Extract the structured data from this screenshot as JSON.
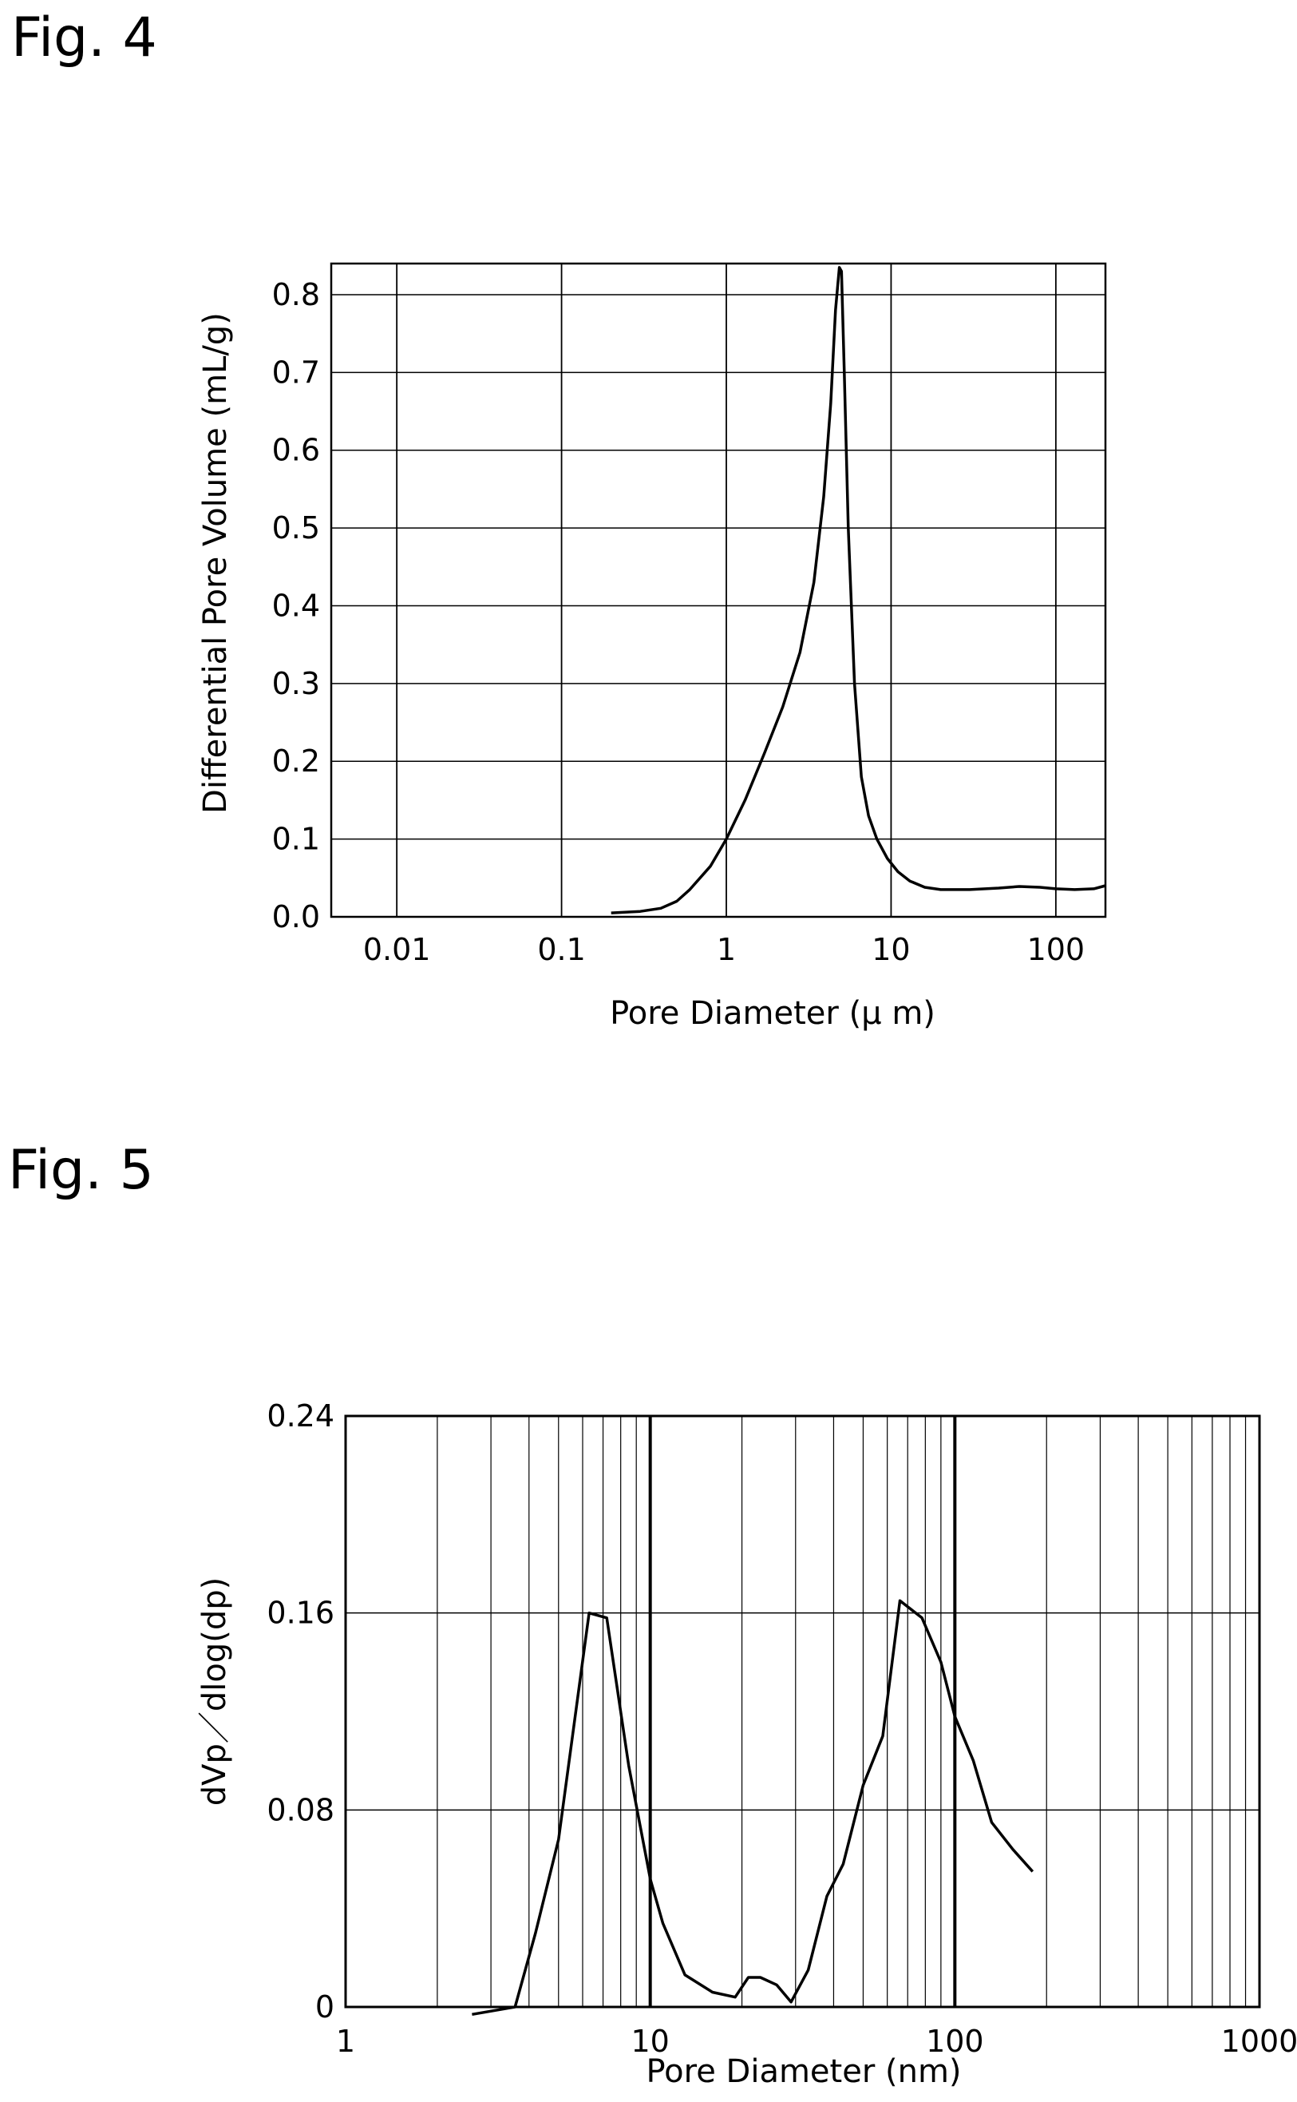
{
  "figures": {
    "fig4_label": "Fig. 4",
    "fig5_label": "Fig. 5"
  },
  "chart_data": [
    {
      "type": "line",
      "xlabel": "Pore Diameter (μ m)",
      "ylabel": "Differential Pore Volume (mL/g)",
      "x_scale": "log",
      "xlim": [
        0.004,
        200
      ],
      "ylim": [
        0,
        0.84
      ],
      "x_ticks": [
        0.01,
        0.1,
        1,
        10,
        100
      ],
      "x_tick_labels": [
        "0.01",
        "0.1",
        "1",
        "10",
        "100"
      ],
      "y_ticks": [
        0,
        0.1,
        0.2,
        0.3,
        0.4,
        0.5,
        0.6,
        0.7,
        0.8
      ],
      "y_tick_labels": [
        "0.0",
        "0.1",
        "0.2",
        "0.3",
        "0.4",
        "0.5",
        "0.6",
        "0.7",
        "0.8"
      ],
      "grid": true,
      "series": [
        {
          "x": [
            0.2,
            0.3,
            0.4,
            0.5,
            0.6,
            0.8,
            1.0,
            1.3,
            1.7,
            2.2,
            2.8,
            3.4,
            3.9,
            4.3,
            4.6,
            4.85,
            5.0,
            5.2,
            5.5,
            6.0,
            6.6,
            7.3,
            8.2,
            9.5,
            11,
            13,
            16,
            20,
            30,
            45,
            60,
            80,
            100,
            130,
            170,
            200
          ],
          "y": [
            0.005,
            0.007,
            0.011,
            0.02,
            0.035,
            0.065,
            0.1,
            0.15,
            0.21,
            0.27,
            0.34,
            0.43,
            0.54,
            0.66,
            0.78,
            0.835,
            0.83,
            0.7,
            0.5,
            0.3,
            0.18,
            0.13,
            0.1,
            0.075,
            0.058,
            0.046,
            0.038,
            0.035,
            0.035,
            0.037,
            0.039,
            0.038,
            0.036,
            0.035,
            0.036,
            0.04
          ]
        }
      ]
    },
    {
      "type": "line",
      "xlabel": "Pore Diameter (nm)",
      "ylabel": "dVp／dlog(dp)",
      "x_scale": "log",
      "xlim": [
        1,
        1000
      ],
      "ylim": [
        0,
        0.24
      ],
      "x_ticks": [
        1,
        10,
        100,
        1000
      ],
      "x_tick_labels": [
        "1",
        "10",
        "100",
        "1000"
      ],
      "y_ticks": [
        0,
        0.08,
        0.16,
        0.24
      ],
      "y_tick_labels": [
        "0",
        "0.08",
        "0.16",
        "0.24"
      ],
      "grid": true,
      "series": [
        {
          "x": [
            2.6,
            3.6,
            4.2,
            5.0,
            6.3,
            7.2,
            8.5,
            10,
            11,
            13,
            16,
            19,
            21,
            23,
            26,
            29,
            33,
            38,
            43,
            50,
            58,
            66,
            78,
            90,
            100,
            115,
            132,
            155,
            180
          ],
          "y": [
            -0.003,
            0.0,
            0.03,
            0.068,
            0.16,
            0.158,
            0.098,
            0.052,
            0.034,
            0.013,
            0.006,
            0.004,
            0.012,
            0.012,
            0.009,
            0.002,
            0.015,
            0.045,
            0.058,
            0.09,
            0.11,
            0.165,
            0.158,
            0.14,
            0.118,
            0.1,
            0.075,
            0.064,
            0.055
          ]
        }
      ]
    }
  ]
}
